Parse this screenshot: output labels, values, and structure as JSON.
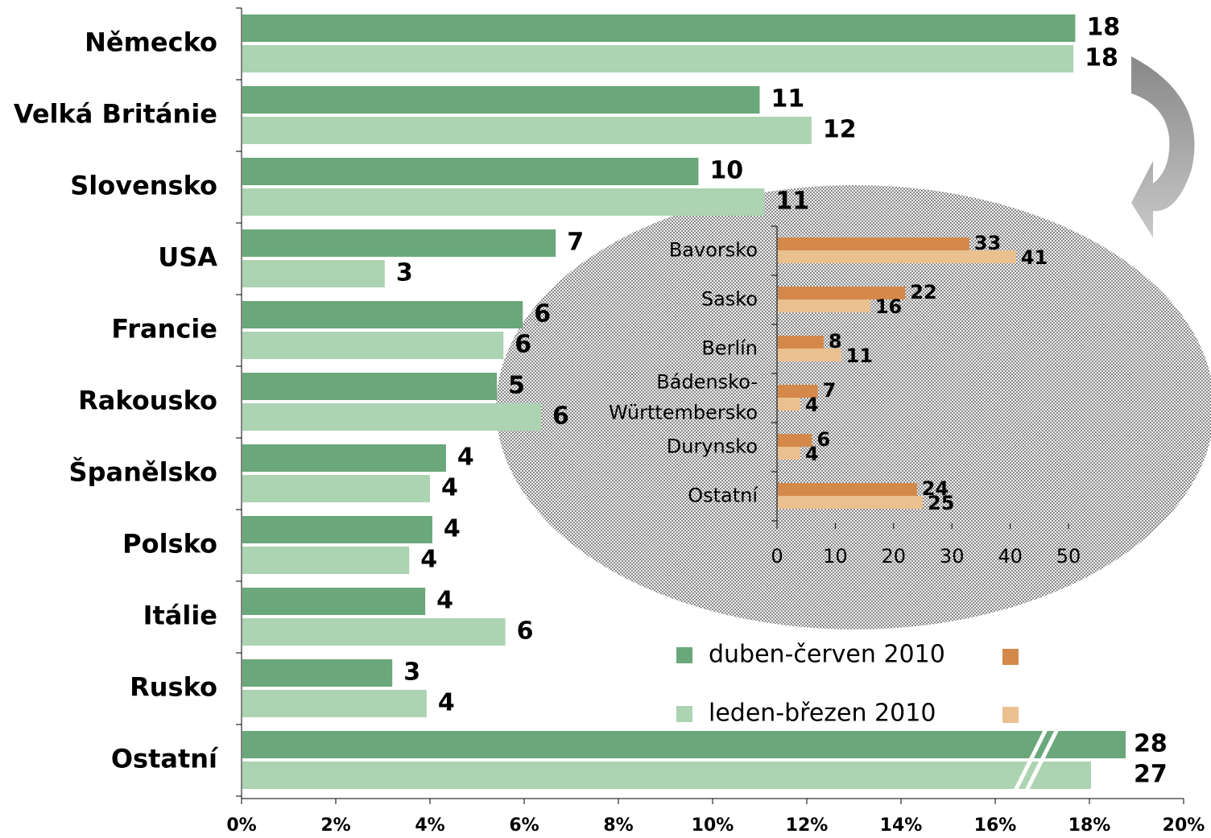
{
  "chart_data": [
    {
      "type": "bar",
      "categories": [
        "Německo",
        "Velká Británie",
        "Slovensko",
        "USA",
        "Francie",
        "Rakousko",
        "Španělsko",
        "Polsko",
        "Itálie",
        "Rusko",
        "Ostatní"
      ],
      "series": [
        {
          "name": "duben-červen 2010",
          "color": "#6aa77a",
          "values": [
            17.7,
            11.0,
            9.7,
            6.67,
            5.97,
            5.42,
            4.34,
            4.05,
            3.9,
            3.2,
            28
          ],
          "value_labels": [
            "18",
            "11",
            "10",
            "7",
            "6",
            "5",
            "4",
            "4",
            "4",
            "3",
            "28"
          ]
        },
        {
          "name": "leden-březen 2010",
          "color": "#acd3b2",
          "values": [
            17.66,
            12.1,
            11.1,
            3.04,
            5.56,
            6.36,
            4.0,
            3.56,
            5.6,
            3.93,
            27
          ],
          "value_labels": [
            "18",
            "12",
            "11",
            "3",
            "6",
            "6",
            "4",
            "4",
            "6",
            "4",
            "27"
          ]
        }
      ],
      "xlim": [
        0,
        20
      ],
      "xticks": [
        {
          "value": 0,
          "label": "0%"
        },
        {
          "value": 2,
          "label": "2%"
        },
        {
          "value": 4,
          "label": "4%"
        },
        {
          "value": 6,
          "label": "6%"
        },
        {
          "value": 8,
          "label": "8%"
        },
        {
          "value": 10,
          "label": "10%"
        },
        {
          "value": 12,
          "label": "12%"
        },
        {
          "value": 14,
          "label": "14%"
        },
        {
          "value": 16,
          "label": "16%"
        },
        {
          "value": 18,
          "label": "18%"
        },
        {
          "value": 20,
          "label": "20%"
        }
      ]
    },
    {
      "type": "bar",
      "categories": [
        "Bavorsko",
        "Sasko",
        "Berlín",
        "Bádensko-\nWürttembersko",
        "Durynsko",
        "Ostatní"
      ],
      "series": [
        {
          "color": "#d4894a",
          "values": [
            33,
            22,
            8,
            7,
            6,
            24
          ]
        },
        {
          "color": "#ebc08f",
          "values": [
            41,
            16,
            11,
            4,
            4,
            25
          ]
        }
      ],
      "xlim": [
        0,
        50
      ],
      "xticks": [
        0,
        10,
        20,
        30,
        40,
        50
      ]
    }
  ]
}
